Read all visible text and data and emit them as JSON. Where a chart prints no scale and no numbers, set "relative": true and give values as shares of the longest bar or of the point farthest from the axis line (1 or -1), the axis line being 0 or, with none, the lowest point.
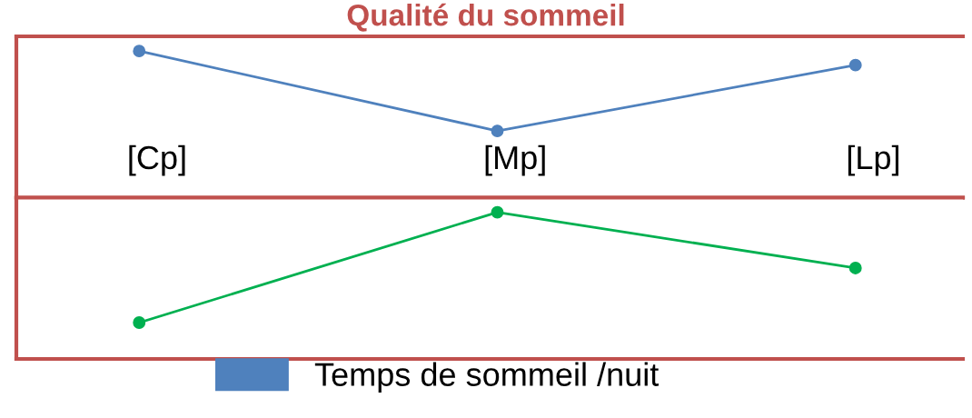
{
  "chart_data": [
    {
      "type": "line",
      "title": "Qualité du sommeil",
      "relative": true,
      "categories": [
        "[Cp]",
        "[Mp]",
        "[Lp]"
      ],
      "marker": "circle",
      "legend": "bottom",
      "series": [
        {
          "name": "Temps de sommeil /nuit",
          "color": "#4f81bd",
          "values": [
            1,
            0.455,
            0.904
          ]
        }
      ]
    },
    {
      "type": "line",
      "relative": true,
      "categories": [
        null,
        null,
        null
      ],
      "marker": "circle",
      "series": [
        {
          "color": "#00b050",
          "values": [
            0.248,
            1,
            0.62
          ]
        }
      ]
    }
  ]
}
